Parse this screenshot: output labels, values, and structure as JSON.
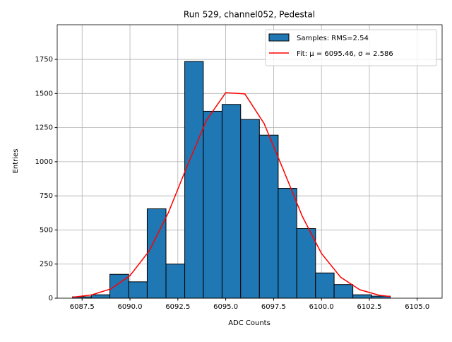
{
  "chart_data": {
    "type": "histogram",
    "title": "Run 529, channel052, Pedestal",
    "xlabel": "ADC Counts",
    "ylabel": "Entries",
    "name": "Samples: RMS=2.54",
    "color": "#1f77b4",
    "edgecolor": "#000000",
    "bins": [
      6087.0,
      6087.98,
      6088.95,
      6089.93,
      6090.9,
      6091.88,
      6092.86,
      6093.83,
      6094.81,
      6095.78,
      6096.76,
      6097.74,
      6098.71,
      6099.69,
      6100.66,
      6101.64,
      6102.62,
      6103.59
    ],
    "values": [
      10,
      25,
      175,
      120,
      655,
      250,
      1735,
      1370,
      1420,
      1310,
      1195,
      805,
      510,
      185,
      100,
      25,
      15
    ],
    "fit": {
      "name": "Fit: μ = 6095.46, σ = 2.586",
      "color": "#ff0000",
      "x": [
        6087,
        6088,
        6089,
        6090,
        6091,
        6092,
        6093,
        6094,
        6095,
        6096,
        6097,
        6098,
        6099,
        6100,
        6101,
        6102,
        6103,
        6103.59
      ],
      "values": [
        7,
        24,
        68,
        165,
        346,
        625,
        973,
        1305,
        1506,
        1497,
        1281,
        944,
        600,
        328,
        154,
        62,
        22,
        12
      ]
    },
    "xlim": [
      6086.2,
      6106.3
    ],
    "ylim": [
      0,
      2004
    ],
    "xticks": [
      6087.5,
      {
        "value": 6090.0,
        "label": "6090.0"
      },
      6092.5,
      {
        "value": 6095.0,
        "label": "6095.0"
      },
      6097.5,
      {
        "value": 6100.0,
        "label": "6100.0"
      },
      6102.5,
      {
        "value": 6105.0,
        "label": "6105.0"
      }
    ],
    "yticks": [
      0,
      250,
      500,
      750,
      1000,
      1250,
      1500,
      1750
    ],
    "grid": true,
    "legend": "upper right"
  }
}
